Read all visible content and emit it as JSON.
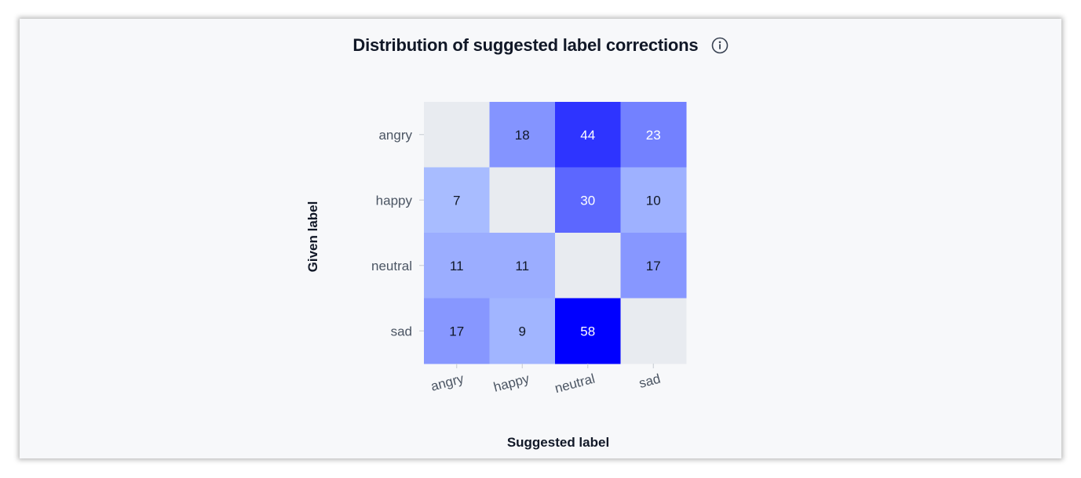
{
  "chart_title": "Distribution of suggested label corrections",
  "info_icon": "info-circle-icon",
  "chart_data": {
    "type": "heatmap",
    "title": "Distribution of suggested label corrections",
    "xlabel": "Suggested label",
    "ylabel": "Given label",
    "x_categories": [
      "angry",
      "happy",
      "neutral",
      "sad"
    ],
    "y_categories": [
      "angry",
      "happy",
      "neutral",
      "sad"
    ],
    "values": [
      [
        null,
        18,
        44,
        23
      ],
      [
        7,
        null,
        30,
        10
      ],
      [
        11,
        11,
        null,
        17
      ],
      [
        17,
        9,
        58,
        null
      ]
    ],
    "value_range": [
      0,
      58
    ],
    "colors": {
      "low": "#bfd6ff",
      "high": "#0000ff",
      "empty": "#e8ebf0",
      "text_dark": "#111827",
      "text_light": "#ffffff"
    },
    "grid": false,
    "legend": "none"
  }
}
